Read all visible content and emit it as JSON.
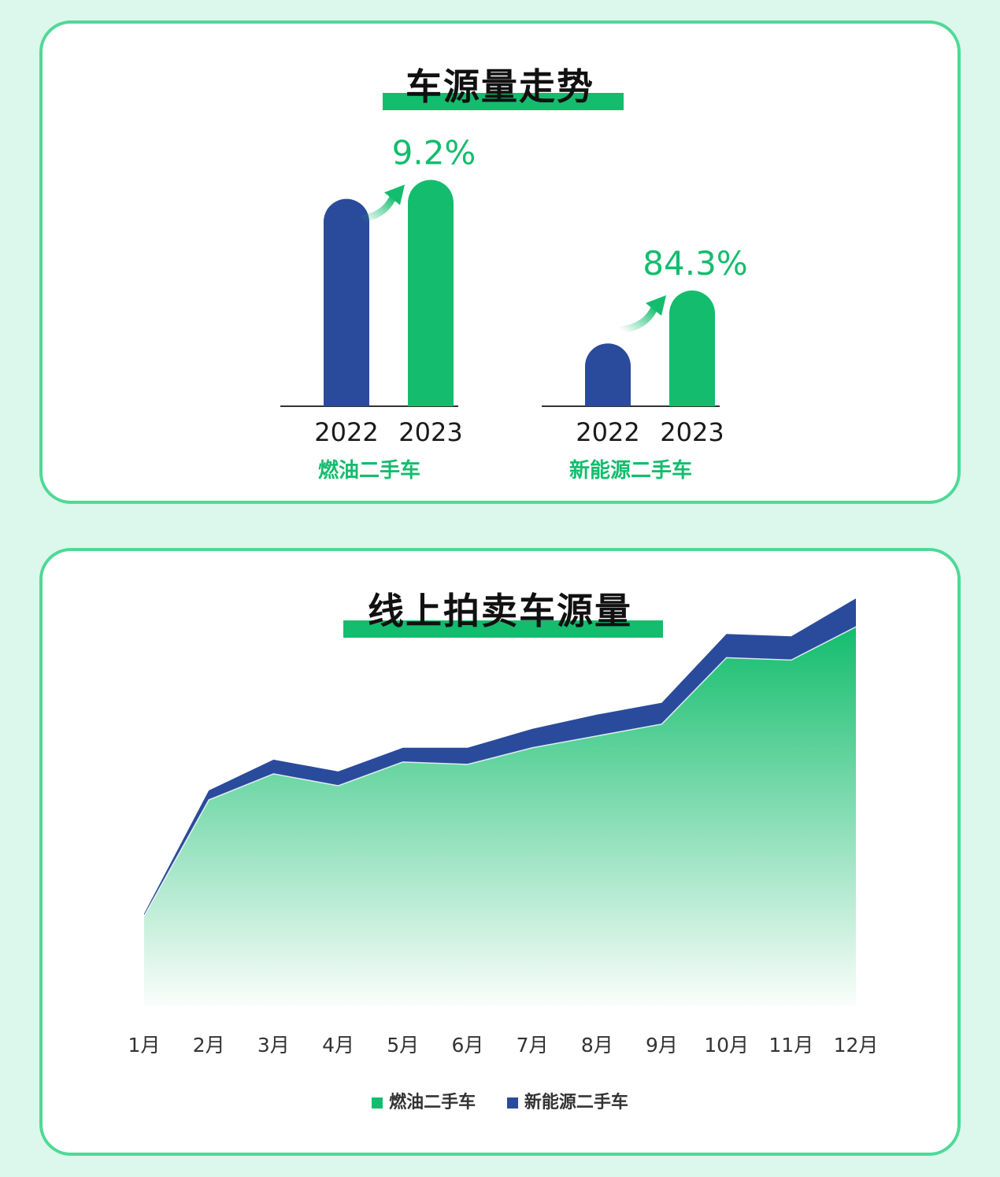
{
  "colors": {
    "fuel": "#13bd6d",
    "ev": "#2a4b9c",
    "accent_bar": "#13bd6d",
    "page_bg": "#dcf7ec",
    "card_border": "#4fd996"
  },
  "panel1": {
    "title": "车源量走势",
    "arrow_icon": "up-right-arrow-icon"
  },
  "panel2": {
    "title": "线上拍卖车源量"
  },
  "chart_data": [
    {
      "type": "bar",
      "title": "车源量走势",
      "groups": [
        {
          "label": "燃油二手车",
          "categories": [
            "2022",
            "2023"
          ],
          "values": [
            100,
            109.2
          ],
          "growth_label": "9.2%"
        },
        {
          "label": "新能源二手车",
          "categories": [
            "2022",
            "2023"
          ],
          "values": [
            30.3,
            55.8
          ],
          "growth_label": "84.3%"
        }
      ],
      "ylim": [
        0,
        120
      ]
    },
    {
      "type": "area",
      "stacked": true,
      "title": "线上拍卖车源量",
      "categories": [
        "1月",
        "2月",
        "3月",
        "4月",
        "5月",
        "6月",
        "7月",
        "8月",
        "9月",
        "10月",
        "11月",
        "12月"
      ],
      "series": [
        {
          "name": "燃油二手车",
          "values": [
            38,
            87,
            98,
            93,
            103,
            102,
            109,
            114,
            119,
            147,
            146,
            160
          ]
        },
        {
          "name": "新能源二手车",
          "values": [
            1,
            4,
            6,
            6,
            6,
            7,
            8,
            9,
            9,
            10,
            10,
            12
          ]
        }
      ],
      "ylim": [
        0,
        180
      ],
      "legend_position": "bottom"
    }
  ]
}
